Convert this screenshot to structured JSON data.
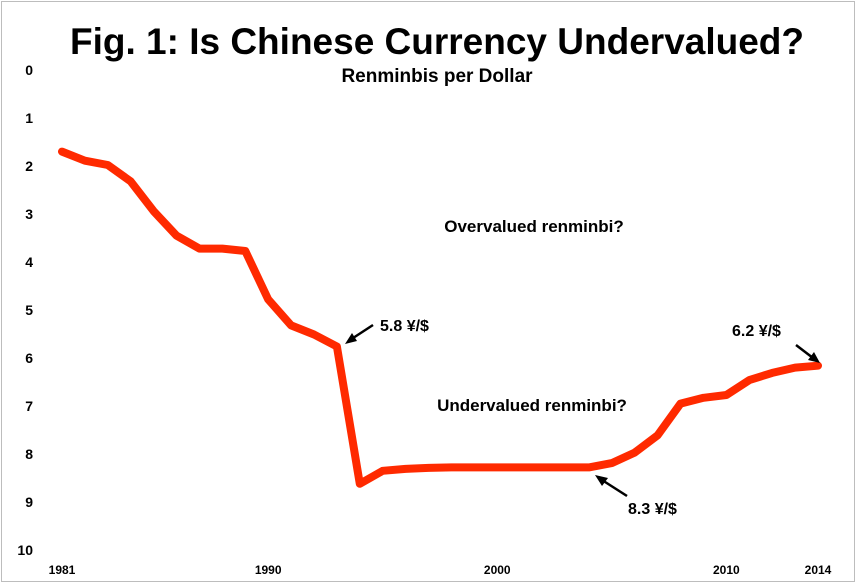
{
  "chart_data": {
    "type": "line",
    "title": "Fig. 1: Is Chinese Currency Undervalued?",
    "subtitle": "Renminbis per Dollar",
    "y_inverted": true,
    "ylim": [
      0,
      10
    ],
    "yticks": [
      "0",
      "1",
      "2",
      "3",
      "4",
      "5",
      "6",
      "7",
      "8",
      "9",
      "10"
    ],
    "xlim": [
      1981,
      2014
    ],
    "xticks": [
      {
        "label": "1981",
        "value": 1981
      },
      {
        "label": "1990",
        "value": 1990
      },
      {
        "label": "2000",
        "value": 2000
      },
      {
        "label": "2010",
        "value": 2010
      },
      {
        "label": "2014",
        "value": 2014
      }
    ],
    "series": [
      {
        "color": "#ff2a00",
        "x": [
          1981,
          1982,
          1983,
          1984,
          1985,
          1986,
          1987,
          1988,
          1989,
          1990,
          1991,
          1992,
          1993,
          1994,
          1995,
          1996,
          1997,
          1998,
          1999,
          2000,
          2001,
          2002,
          2003,
          2004,
          2005,
          2006,
          2007,
          2008,
          2009,
          2010,
          2011,
          2012,
          2013,
          2014
        ],
        "values": [
          1.7,
          1.89,
          1.98,
          2.32,
          2.94,
          3.45,
          3.72,
          3.72,
          3.77,
          4.78,
          5.32,
          5.51,
          5.76,
          8.62,
          8.35,
          8.31,
          8.29,
          8.28,
          8.28,
          8.28,
          8.28,
          8.28,
          8.28,
          8.28,
          8.19,
          7.97,
          7.61,
          6.95,
          6.83,
          6.77,
          6.46,
          6.31,
          6.2,
          6.16
        ]
      }
    ],
    "annotations": [
      {
        "text": "5.8 ¥/$",
        "x": 1993,
        "y": 5.76
      },
      {
        "text": "8.3 ¥/$",
        "x": 2004,
        "y": 8.28
      },
      {
        "text": "6.2 ¥/$",
        "x": 2014,
        "y": 6.16
      }
    ],
    "regions": [
      {
        "text": "Overvalued renminbi?"
      },
      {
        "text": "Undervalued renminbi?"
      }
    ],
    "grid": false
  }
}
